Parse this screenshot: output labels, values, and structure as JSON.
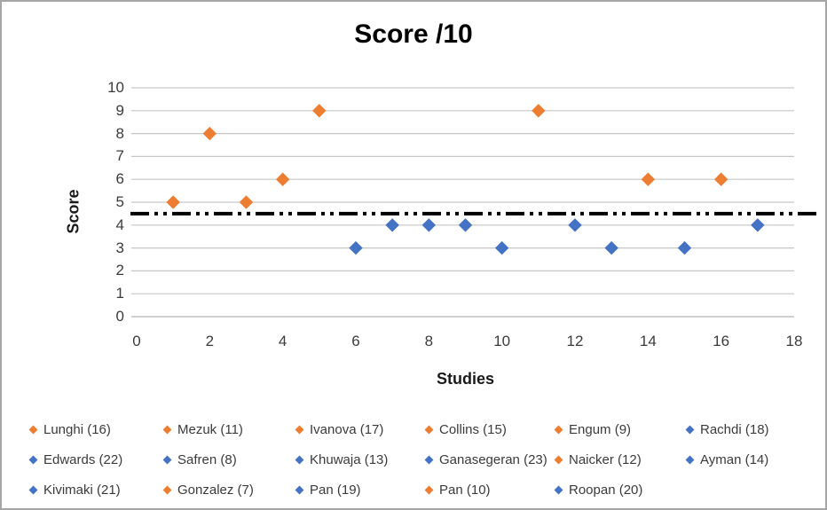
{
  "chart_data": {
    "type": "scatter",
    "title": "Score /10",
    "xlabel": "Studies",
    "ylabel": "Score",
    "xlim": [
      0,
      18
    ],
    "ylim": [
      0,
      10
    ],
    "x_ticks": [
      0,
      2,
      4,
      6,
      8,
      10,
      12,
      14,
      16,
      18
    ],
    "y_ticks": [
      0,
      1,
      2,
      3,
      4,
      5,
      6,
      7,
      8,
      9,
      10
    ],
    "grid": "horizontal-only",
    "legend_position": "bottom",
    "reference_line": {
      "y": 4.5,
      "style": "dash-dot-dot",
      "color": "#000000"
    },
    "series": [
      {
        "name": "Lunghi (16)",
        "color": "orange",
        "x": 1,
        "y": 5
      },
      {
        "name": "Mezuk (11)",
        "color": "orange",
        "x": 2,
        "y": 8
      },
      {
        "name": "Ivanova (17)",
        "color": "orange",
        "x": 3,
        "y": 5
      },
      {
        "name": "Collins (15)",
        "color": "orange",
        "x": 4,
        "y": 6
      },
      {
        "name": "Engum (9)",
        "color": "orange",
        "x": 5,
        "y": 9
      },
      {
        "name": "Rachdi (18)",
        "color": "blue",
        "x": 6,
        "y": 3
      },
      {
        "name": "Edwards (22)",
        "color": "blue",
        "x": 7,
        "y": 4
      },
      {
        "name": "Safren (8)",
        "color": "blue",
        "x": 8,
        "y": 4
      },
      {
        "name": "Khuwaja (13)",
        "color": "blue",
        "x": 9,
        "y": 4
      },
      {
        "name": "Ganasegeran (23)",
        "color": "blue",
        "x": 10,
        "y": 3
      },
      {
        "name": "Naicker (12)",
        "color": "orange",
        "x": 11,
        "y": 9
      },
      {
        "name": "Ayman (14)",
        "color": "blue",
        "x": 12,
        "y": 4
      },
      {
        "name": "Kivimaki (21)",
        "color": "blue",
        "x": 13,
        "y": 3
      },
      {
        "name": "Gonzalez (7)",
        "color": "orange",
        "x": 14,
        "y": 6
      },
      {
        "name": "Pan (19)",
        "color": "blue",
        "x": 15,
        "y": 3
      },
      {
        "name": "Pan (10)",
        "color": "orange",
        "x": 16,
        "y": 6
      },
      {
        "name": "Roopan (20)",
        "color": "blue",
        "x": 17,
        "y": 4
      }
    ]
  },
  "colors": {
    "orange": "#ED7D31",
    "blue": "#4472C4",
    "gridline": "#c6c6c6",
    "axis_line": "#b3b3b3",
    "reference_line": "#000000",
    "text": "#3b3b3b",
    "title_text": "#000000",
    "frame_border": "#a6a6a6"
  }
}
